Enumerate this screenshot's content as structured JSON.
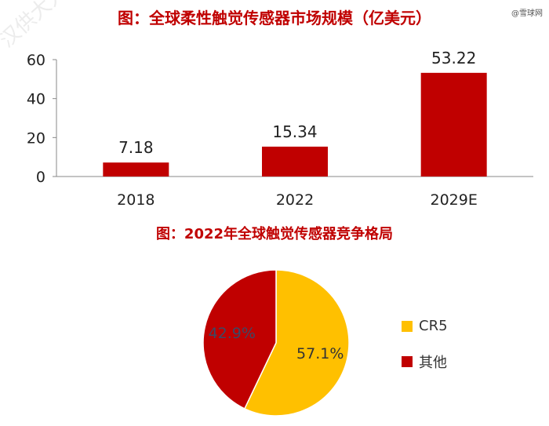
{
  "watermark_top_right": "@雪球网",
  "watermark_diag": "汉供大人内部",
  "charts": {
    "bar_title": "图：全球柔性触觉传感器市场规模（亿美元）",
    "pie_title": "图：2022年全球触觉传感器竞争格局"
  },
  "colors": {
    "bar": "#c00000",
    "pie_cr5": "#ffc000",
    "pie_other": "#c00000"
  },
  "chart_data": [
    {
      "type": "bar",
      "title": "图：全球柔性触觉传感器市场规模（亿美元）",
      "categories": [
        "2018",
        "2022",
        "2029E"
      ],
      "values": [
        7.18,
        15.34,
        53.22
      ],
      "value_labels": [
        "7.18",
        "15.34",
        "53.22"
      ],
      "ylim": [
        0,
        60
      ],
      "yticks": [
        "0",
        "20",
        "40",
        "60"
      ],
      "grid": false
    },
    {
      "type": "pie",
      "title": "图：2022年全球触觉传感器竞争格局",
      "slices": [
        {
          "name": "CR5",
          "value": 57.1,
          "label": "57.1%"
        },
        {
          "name": "其他",
          "value": 42.9,
          "label": "42.9%"
        }
      ],
      "legend_position": "right"
    }
  ]
}
